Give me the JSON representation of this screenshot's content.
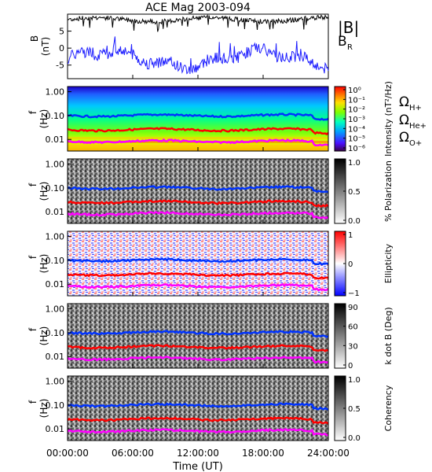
{
  "title": "ACE Mag 2003-094",
  "x_axis": {
    "label": "Time (UT)",
    "ticks": [
      "00:00:00",
      "06:00:00",
      "12:00:00",
      "18:00:00",
      "24:00:00"
    ]
  },
  "colors": {
    "B_total": "#000000",
    "B_R": "#1f1fff",
    "omega_H": "#0033ff",
    "omega_He": "#ff0000",
    "omega_O": "#ff00ff"
  },
  "chart_data": [
    {
      "type": "line",
      "ylabel": "B (nT)",
      "ylim": [
        -9,
        10
      ],
      "yticks": [
        "5",
        "0",
        "-5"
      ],
      "series": [
        {
          "name": "|B|",
          "mean": 8.4
        },
        {
          "name": "B_R",
          "mean": -3.2
        }
      ],
      "legend": [
        "|B|",
        "B_R"
      ]
    },
    {
      "type": "heatmap",
      "ylabel": "f (Hz)",
      "yticks": [
        "1.00",
        "0.10",
        "0.01"
      ],
      "colorbar_label": "Intensity (nT²/Hz)",
      "colorbar_ticks": [
        "10⁰",
        "10⁻¹",
        "10⁻²",
        "10⁻³",
        "10⁻⁴",
        "10⁻⁵",
        "10⁻⁶"
      ],
      "legend": [
        "Ω_H+",
        "Ω_He+",
        "Ω_O+"
      ]
    },
    {
      "type": "heatmap",
      "ylabel": "f (Hz)",
      "yticks": [
        "1.00",
        "0.10",
        "0.01"
      ],
      "colorbar_label": "% Polarization",
      "colorbar_ticks": [
        "1.0",
        "0.5",
        "0.0"
      ]
    },
    {
      "type": "heatmap",
      "ylabel": "f (Hz)",
      "yticks": [
        "1.00",
        "0.10",
        "0.01"
      ],
      "colorbar_label": "Ellipticity",
      "colorbar_ticks": [
        "1",
        "0",
        "−1"
      ]
    },
    {
      "type": "heatmap",
      "ylabel": "f (Hz)",
      "yticks": [
        "1.00",
        "0.10",
        "0.01"
      ],
      "colorbar_label": "k dot B (Deg)",
      "colorbar_ticks": [
        "90",
        "60",
        "30",
        "0"
      ]
    },
    {
      "type": "heatmap",
      "ylabel": "f (Hz)",
      "yticks": [
        "1.00",
        "0.10",
        "0.01"
      ],
      "colorbar_label": "Coherency",
      "colorbar_ticks": [
        "1.0",
        "0.5",
        "0.0"
      ]
    }
  ]
}
